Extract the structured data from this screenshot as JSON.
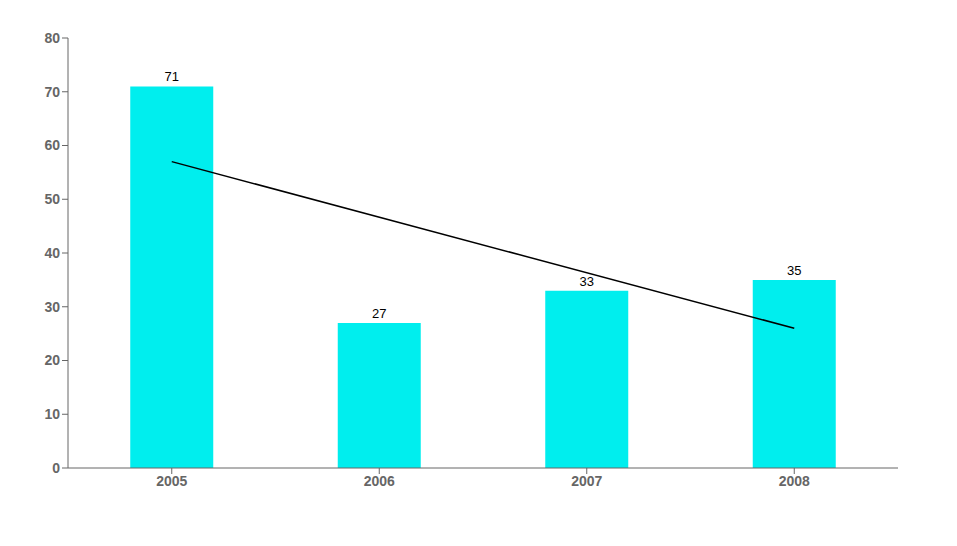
{
  "chart_data": {
    "type": "bar",
    "categories": [
      "2005",
      "2006",
      "2007",
      "2008"
    ],
    "series": [
      {
        "type": "bar",
        "color": "#00EEEE",
        "values": [
          71,
          27,
          33,
          35
        ],
        "data_labels": true
      },
      {
        "type": "line",
        "color": "#000000",
        "values": [
          57,
          null,
          null,
          26
        ]
      }
    ],
    "ylim": [
      0,
      80
    ],
    "yticks": [
      0,
      10,
      20,
      30,
      40,
      50,
      60,
      70,
      80
    ],
    "grid": false
  }
}
